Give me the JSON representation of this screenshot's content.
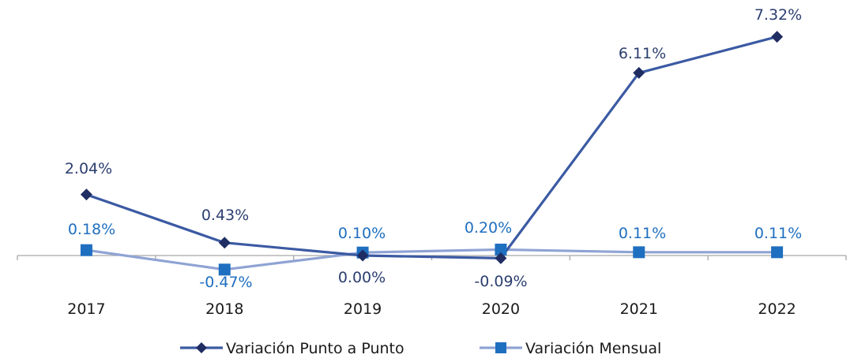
{
  "chart_data": {
    "type": "line",
    "categories": [
      "2017",
      "2018",
      "2019",
      "2020",
      "2021",
      "2022"
    ],
    "series": [
      {
        "name": "Variación Punto a Punto",
        "values": [
          2.04,
          0.43,
          0.0,
          -0.09,
          6.11,
          7.32
        ],
        "labels": [
          "2.04%",
          "0.43%",
          "0.00%",
          "-0.09%",
          "6.11%",
          "7.32%"
        ],
        "color": "#3b5aa3",
        "marker": "diamond",
        "marker_color": "#1f2d63",
        "label_color": "#2c3e70"
      },
      {
        "name": "Variación Mensual",
        "values": [
          0.18,
          -0.47,
          0.1,
          0.2,
          0.11,
          0.11
        ],
        "labels": [
          "0.18%",
          "-0.47%",
          "0.10%",
          "0.20%",
          "0.11%",
          "0.11%"
        ],
        "color": "#8fa3d4",
        "marker": "square",
        "marker_color": "#1f6fc0",
        "label_color": "#1f6fc0"
      }
    ],
    "legend": "bottom",
    "grid": false,
    "axis_color": "#a6a6a6"
  }
}
